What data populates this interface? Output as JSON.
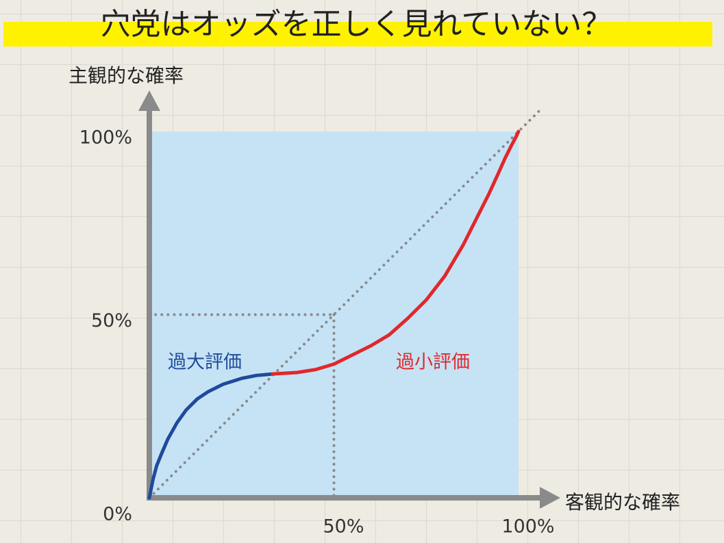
{
  "chart_data": {
    "type": "line",
    "title": "穴党はオッズを正しく見れていない？",
    "y_label": "主観的な確率",
    "x_label": "客観的な確率",
    "xlim": [
      0,
      100
    ],
    "ylim": [
      0,
      100
    ],
    "xticks": [
      {
        "value": 50,
        "label": "50%"
      },
      {
        "value": 100,
        "label": "100%"
      }
    ],
    "yticks": [
      {
        "value": 0,
        "label": "0%"
      },
      {
        "value": 50,
        "label": "50%"
      },
      {
        "value": 100,
        "label": "100%"
      }
    ],
    "series": [
      {
        "name": "過大評価",
        "color": "#1f4a9c",
        "x": [
          0,
          1,
          2,
          3.5,
          5,
          7.5,
          10,
          13,
          16,
          20,
          25,
          29,
          33.4
        ],
        "values": [
          0,
          5,
          8.8,
          12.5,
          16,
          20.5,
          24,
          27,
          29,
          31,
          32.6,
          33.4,
          33.8
        ]
      },
      {
        "name": "過小評価",
        "color": "#e0282c",
        "x": [
          33.4,
          40,
          45,
          50,
          55,
          60,
          65,
          70,
          75,
          80,
          85,
          89,
          92,
          94.5,
          96.5,
          98,
          99.3,
          100
        ],
        "values": [
          33.8,
          34.2,
          35,
          36.5,
          39,
          41.5,
          44.5,
          49,
          54,
          60.5,
          69,
          77,
          83,
          88.5,
          93,
          96,
          98.5,
          100
        ]
      }
    ],
    "reference_line": {
      "x": [
        0,
        106
      ],
      "values": [
        0,
        106
      ]
    },
    "guide": {
      "x": 50,
      "y": 50
    },
    "plot_color": "#c5e3f5",
    "axis_color": "#8a8a8a",
    "highlight_color": "#fff200"
  }
}
